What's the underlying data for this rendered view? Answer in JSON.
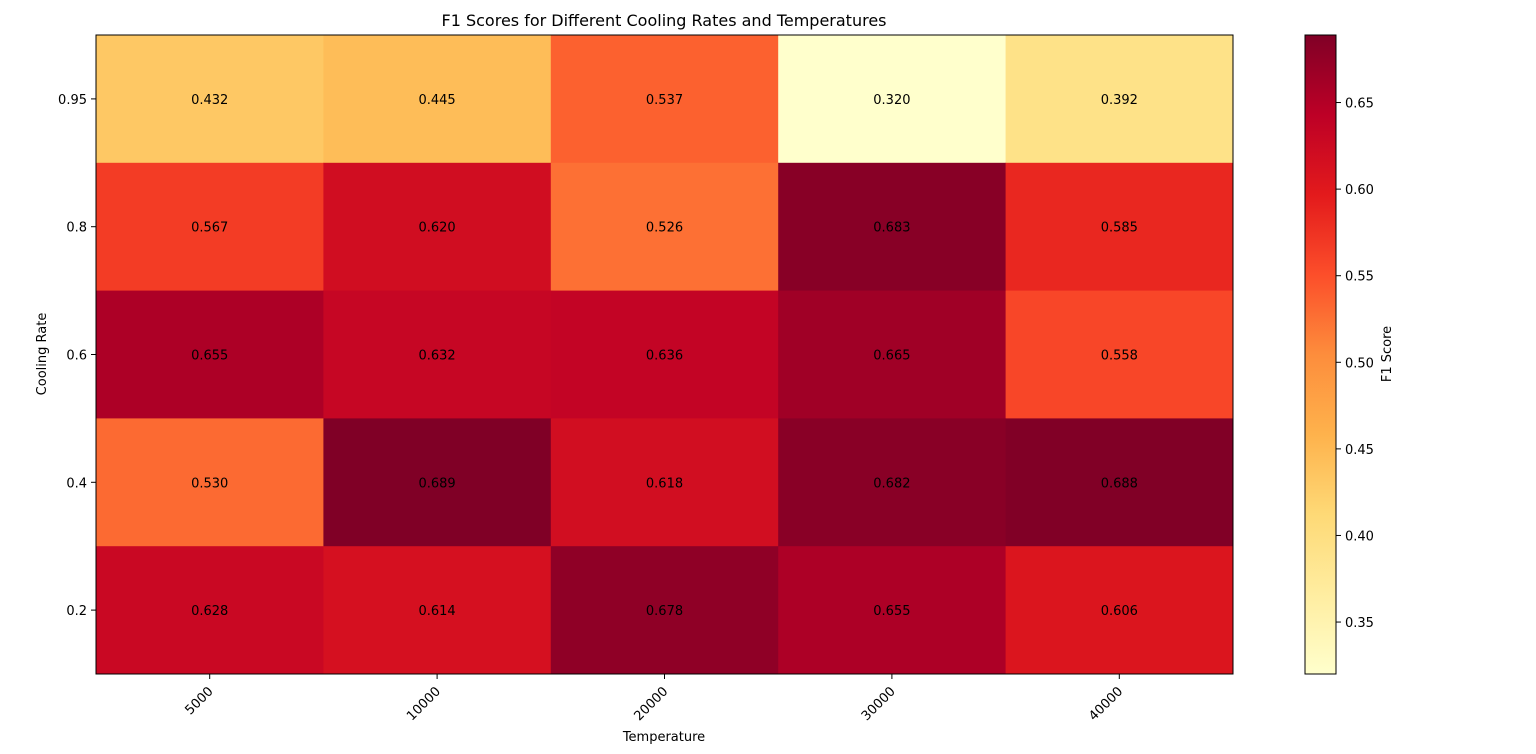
{
  "chart_data": {
    "type": "heatmap",
    "title": "F1 Scores for Different Cooling Rates and Temperatures",
    "xlabel": "Temperature",
    "ylabel": "Cooling Rate",
    "x_categories": [
      "5000",
      "10000",
      "20000",
      "30000",
      "40000"
    ],
    "y_categories": [
      "0.95",
      "0.8",
      "0.6",
      "0.4",
      "0.2"
    ],
    "values": [
      [
        0.432,
        0.445,
        0.537,
        0.32,
        0.392
      ],
      [
        0.567,
        0.62,
        0.526,
        0.683,
        0.585
      ],
      [
        0.655,
        0.632,
        0.636,
        0.665,
        0.558
      ],
      [
        0.53,
        0.689,
        0.618,
        0.682,
        0.688
      ],
      [
        0.628,
        0.614,
        0.678,
        0.655,
        0.606
      ]
    ],
    "value_labels": [
      [
        "0.432",
        "0.445",
        "0.537",
        "0.320",
        "0.392"
      ],
      [
        "0.567",
        "0.620",
        "0.526",
        "0.683",
        "0.585"
      ],
      [
        "0.655",
        "0.632",
        "0.636",
        "0.665",
        "0.558"
      ],
      [
        "0.530",
        "0.689",
        "0.618",
        "0.682",
        "0.688"
      ],
      [
        "0.628",
        "0.614",
        "0.678",
        "0.655",
        "0.606"
      ]
    ],
    "colormap": "YlOrRd",
    "colorbar": {
      "label": "F1 Score",
      "range": [
        0.32,
        0.689
      ],
      "ticks": [
        "0.35",
        "0.40",
        "0.45",
        "0.50",
        "0.55",
        "0.60",
        "0.65"
      ]
    }
  }
}
